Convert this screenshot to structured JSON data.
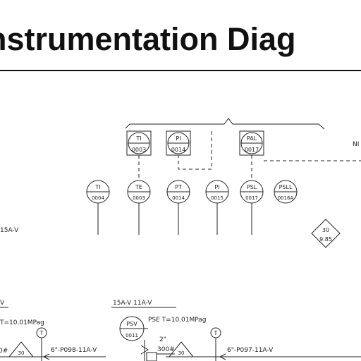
{
  "page": {
    "title": "nstrumentation Diag"
  },
  "panel_instruments": [
    {
      "tag": "TI",
      "number": "0003"
    },
    {
      "tag": "PI",
      "number": "0014"
    },
    {
      "tag": "PAL",
      "number": "0017"
    }
  ],
  "field_instruments": [
    {
      "tag": "TI",
      "number": "0004"
    },
    {
      "tag": "TE",
      "number": "0003"
    },
    {
      "tag": "PT",
      "number": "0014"
    },
    {
      "tag": "PI",
      "number": "0015"
    },
    {
      "tag": "PSL",
      "number": "0017"
    },
    {
      "tag": "PSLL",
      "number": "0016A"
    }
  ],
  "labels": {
    "ni_partial": "NI",
    "line_left": "15A-V",
    "diamond_top": "30",
    "diamond_bottom": "9.85",
    "v_left": "V",
    "set_left": "T=10.01MPag",
    "pipe_top": "15A-V  11A-V",
    "psv_tag": "PSV",
    "psv_number": "0011",
    "pse": "PSE T=10.01MPag",
    "size_2": "2\"",
    "rating_300": "300#",
    "rating_left": "0#",
    "tri_left": "30",
    "tri_right": "30",
    "pipe_line_1": "6\"-P098-11A-V",
    "pipe_line_2": "6\"-P097-11A-V",
    "t_bubble": "T"
  }
}
